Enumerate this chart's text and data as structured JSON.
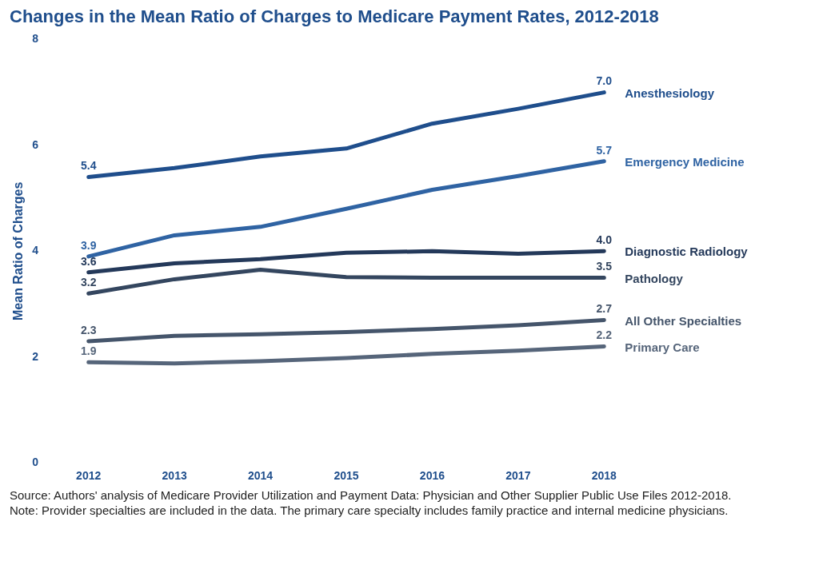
{
  "chart_data": {
    "type": "line",
    "title": "Changes in the Mean Ratio of Charges to Medicare Payment Rates, 2012-2018",
    "ylabel": "Mean Ratio of Charges",
    "categories": [
      "2012",
      "2013",
      "2014",
      "2015",
      "2016",
      "2017",
      "2018"
    ],
    "ylim": [
      0,
      8
    ],
    "yticks": [
      0,
      2,
      4,
      6,
      8
    ],
    "grid": false,
    "legend": false,
    "marker": "none",
    "line_style": "solid",
    "series": [
      {
        "name": "Anesthesiology",
        "color": "#1f4e8c",
        "values": [
          5.4,
          5.57,
          5.79,
          5.94,
          6.41,
          6.69,
          7.0
        ],
        "value_labels": [
          "5.4",
          null,
          null,
          null,
          null,
          null,
          "7.0"
        ]
      },
      {
        "name": "Emergency Medicine",
        "color": "#2f63a3",
        "values": [
          3.9,
          4.3,
          4.46,
          4.8,
          5.16,
          5.42,
          5.7
        ],
        "value_labels": [
          "3.9",
          null,
          null,
          null,
          null,
          null,
          "5.7"
        ]
      },
      {
        "name": "Diagnostic Radiology",
        "color": "#24395a",
        "values": [
          3.6,
          3.77,
          3.85,
          3.97,
          4.0,
          3.95,
          4.0
        ],
        "value_labels": [
          "3.6",
          null,
          null,
          null,
          null,
          null,
          "4.0"
        ]
      },
      {
        "name": "Pathology",
        "color": "#34465f",
        "values": [
          3.2,
          3.47,
          3.65,
          3.51,
          3.5,
          3.5,
          3.5
        ],
        "value_labels": [
          "3.2",
          null,
          null,
          null,
          null,
          null,
          "3.5"
        ]
      },
      {
        "name": "All Other Specialties",
        "color": "#45556b",
        "values": [
          2.3,
          2.4,
          2.43,
          2.47,
          2.53,
          2.6,
          2.7
        ],
        "value_labels": [
          "2.3",
          null,
          null,
          null,
          null,
          null,
          "2.7"
        ]
      },
      {
        "name": "Primary Care",
        "color": "#56657a",
        "values": [
          1.9,
          1.88,
          1.92,
          1.98,
          2.06,
          2.12,
          2.2
        ],
        "value_labels": [
          "1.9",
          null,
          null,
          null,
          null,
          null,
          "2.2"
        ]
      }
    ],
    "annotations": [
      "Source: Authors' analysis of Medicare Provider Utilization and Payment Data: Physician and Other Supplier Public Use Files 2012-2018.",
      "Note: Provider specialties are included in the data. The primary care specialty includes family practice and internal medicine physicians."
    ]
  }
}
